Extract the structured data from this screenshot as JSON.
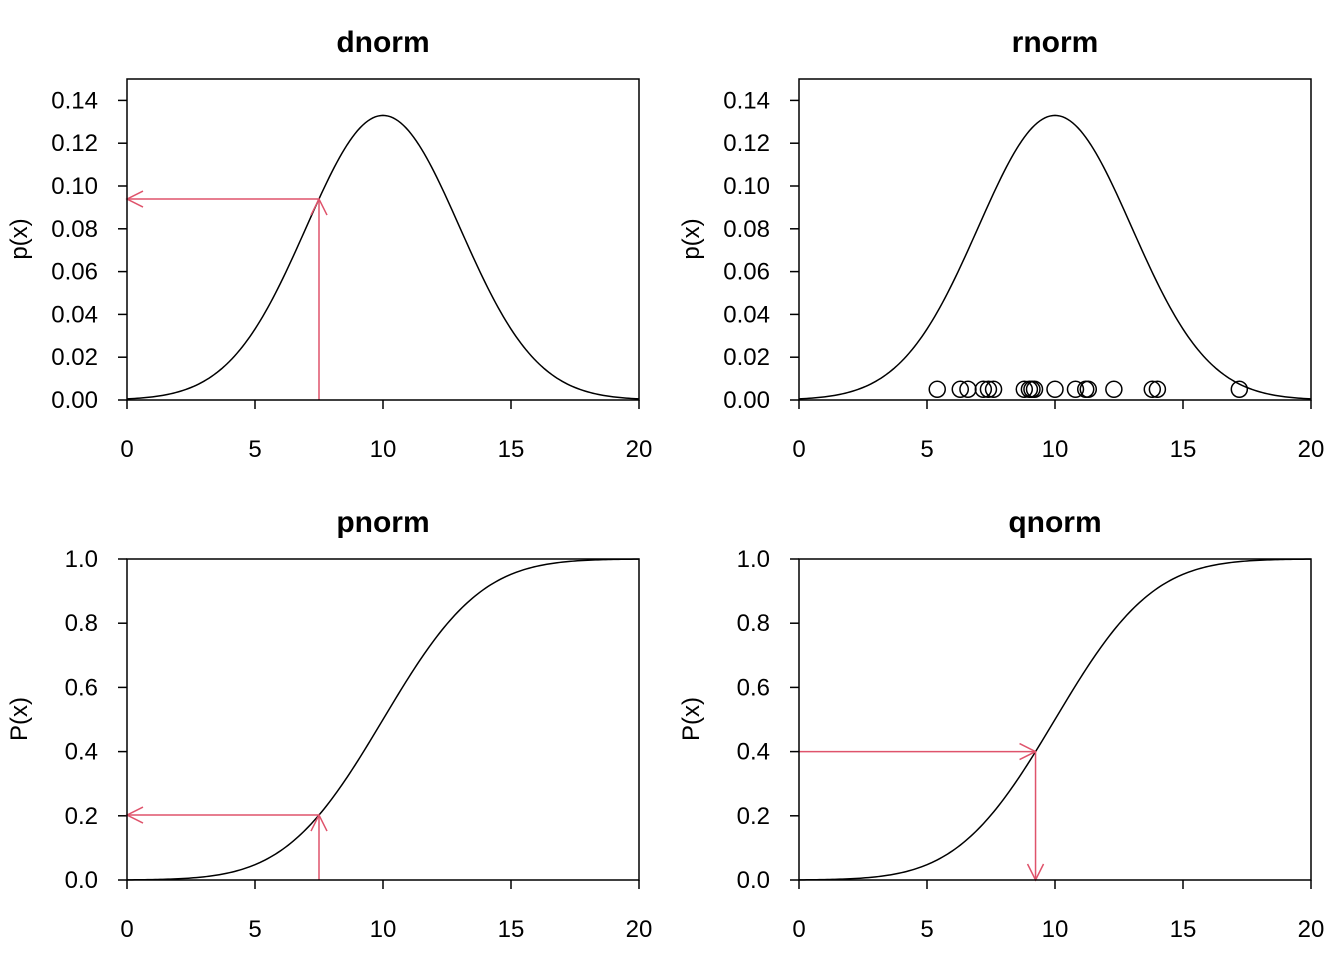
{
  "chart_data": [
    {
      "type": "line",
      "title": "dnorm",
      "xlabel": "",
      "ylabel": "p(x)",
      "xlim": [
        0,
        20
      ],
      "ylim": [
        0,
        0.15
      ],
      "xticks": [
        "0",
        "5",
        "10",
        "15",
        "20"
      ],
      "yticks": [
        "0.00",
        "0.02",
        "0.04",
        "0.06",
        "0.08",
        "0.10",
        "0.12",
        "0.14"
      ],
      "curve": {
        "kind": "normal-density",
        "mean": 10,
        "sd": 3
      },
      "annotation": {
        "x": 7.5,
        "y": 0.0939,
        "direction": "to-y-axis",
        "color": "#DF536B"
      },
      "grid": false
    },
    {
      "type": "scatter",
      "title": "rnorm",
      "xlabel": "",
      "ylabel": "p(x)",
      "xlim": [
        0,
        20
      ],
      "ylim": [
        0,
        0.15
      ],
      "xticks": [
        "0",
        "5",
        "10",
        "15",
        "20"
      ],
      "yticks": [
        "0.00",
        "0.02",
        "0.04",
        "0.06",
        "0.08",
        "0.10",
        "0.12",
        "0.14"
      ],
      "curve": {
        "kind": "normal-density",
        "mean": 10,
        "sd": 3
      },
      "points_y": 0.005,
      "points_x": [
        5.4,
        6.3,
        6.6,
        7.2,
        7.4,
        7.6,
        8.8,
        9.0,
        9.1,
        9.2,
        10.0,
        10.8,
        11.2,
        11.3,
        12.3,
        13.8,
        14.0,
        17.2
      ],
      "grid": false
    },
    {
      "type": "line",
      "title": "pnorm",
      "xlabel": "",
      "ylabel": "P(x)",
      "xlim": [
        0,
        20
      ],
      "ylim": [
        0,
        1
      ],
      "xticks": [
        "0",
        "5",
        "10",
        "15",
        "20"
      ],
      "yticks": [
        "0.0",
        "0.2",
        "0.4",
        "0.6",
        "0.8",
        "1.0"
      ],
      "curve": {
        "kind": "normal-cdf",
        "mean": 10,
        "sd": 3
      },
      "annotation": {
        "x": 7.5,
        "y": 0.2023,
        "direction": "to-y-axis",
        "color": "#DF536B"
      },
      "grid": false
    },
    {
      "type": "line",
      "title": "qnorm",
      "xlabel": "",
      "ylabel": "P(x)",
      "xlim": [
        0,
        20
      ],
      "ylim": [
        0,
        1
      ],
      "xticks": [
        "0",
        "5",
        "10",
        "15",
        "20"
      ],
      "yticks": [
        "0.0",
        "0.2",
        "0.4",
        "0.6",
        "0.8",
        "1.0"
      ],
      "curve": {
        "kind": "normal-cdf",
        "mean": 10,
        "sd": 3
      },
      "annotation": {
        "x": 9.24,
        "y": 0.4,
        "direction": "to-x-axis",
        "color": "#DF536B"
      },
      "grid": false
    }
  ]
}
